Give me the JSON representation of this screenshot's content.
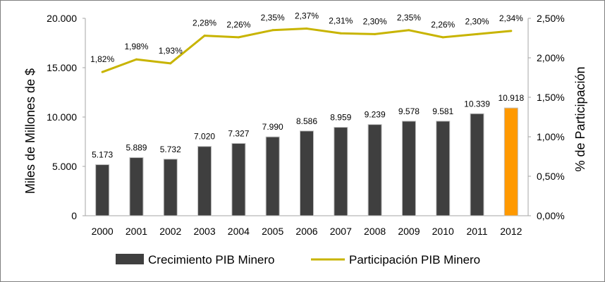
{
  "colors": {
    "bar": "#3f3f3f",
    "bar_highlight": "#ff9900",
    "line": "#c8b400",
    "axis": "#a6a6a6"
  },
  "chart_data": {
    "type": "bar",
    "categories": [
      "2000",
      "2001",
      "2002",
      "2003",
      "2004",
      "2005",
      "2006",
      "2007",
      "2008",
      "2009",
      "2010",
      "2011",
      "2012"
    ],
    "series": [
      {
        "name": "Crecimiento PIB Minero",
        "type": "bar",
        "axis": "left",
        "values": [
          5173,
          5889,
          5732,
          7020,
          7327,
          7990,
          8586,
          8959,
          9239,
          9578,
          9581,
          10339,
          10918
        ],
        "labels": [
          "5.173",
          "5.889",
          "5.732",
          "7.020",
          "7.327",
          "7.990",
          "8.586",
          "8.959",
          "9.239",
          "9.578",
          "9.581",
          "10.339",
          "10.918"
        ],
        "highlight_category": "2012"
      },
      {
        "name": "Participación PIB Minero",
        "type": "line",
        "axis": "right",
        "values": [
          1.82,
          1.98,
          1.93,
          2.28,
          2.26,
          2.35,
          2.37,
          2.31,
          2.3,
          2.35,
          2.26,
          2.3,
          2.34
        ],
        "labels": [
          "1,82%",
          "1,98%",
          "1,93%",
          "2,28%",
          "2,26%",
          "2,35%",
          "2,37%",
          "2,31%",
          "2,30%",
          "2,35%",
          "2,26%",
          "2,30%",
          "2,34%"
        ]
      }
    ],
    "ylabel": "Miles de Millones de $",
    "y2label": "% de Participación",
    "ylim": [
      0,
      20000
    ],
    "y2lim": [
      0,
      2.5
    ],
    "yticks": [
      "0",
      "5.000",
      "10.000",
      "15.000",
      "20.000"
    ],
    "y2ticks": [
      "0,00%",
      "0,50%",
      "1,00%",
      "1,50%",
      "2,00%",
      "2,50%"
    ],
    "grid": false,
    "legend_position": "bottom"
  }
}
